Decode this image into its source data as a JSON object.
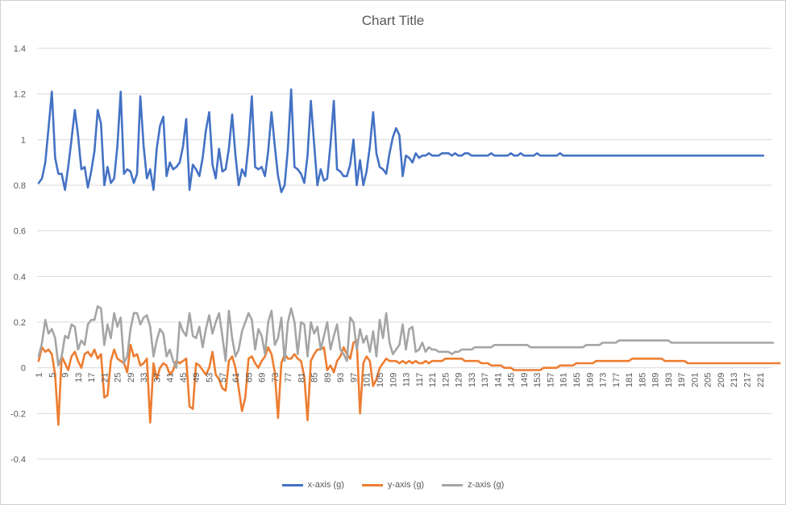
{
  "chart_data": {
    "type": "line",
    "title": "Chart Title",
    "xlabel": "",
    "ylabel": "",
    "ylim": [
      -0.4,
      1.4
    ],
    "y_ticks": [
      -0.4,
      -0.2,
      0,
      0.2,
      0.4,
      0.6,
      0.8,
      1,
      1.2,
      1.4
    ],
    "x_range": [
      1,
      224
    ],
    "x_tick_labels": [
      1,
      5,
      9,
      13,
      17,
      21,
      25,
      29,
      33,
      37,
      41,
      45,
      49,
      53,
      57,
      61,
      65,
      69,
      73,
      77,
      81,
      85,
      89,
      93,
      97,
      101,
      105,
      109,
      113,
      117,
      121,
      125,
      129,
      133,
      137,
      141,
      145,
      149,
      153,
      157,
      161,
      165,
      169,
      173,
      177,
      181,
      185,
      189,
      193,
      197,
      201,
      205,
      209,
      213,
      217,
      221
    ],
    "grid": true,
    "legend_position": "bottom",
    "series": [
      {
        "name": "x-axis (g)",
        "color": "#4472C4",
        "values": [
          0.81,
          0.83,
          0.9,
          1.05,
          1.21,
          0.92,
          0.85,
          0.85,
          0.78,
          0.88,
          1.0,
          1.13,
          1.02,
          0.87,
          0.88,
          0.79,
          0.86,
          0.95,
          1.13,
          1.07,
          0.8,
          0.88,
          0.81,
          0.83,
          0.97,
          1.21,
          0.85,
          0.87,
          0.86,
          0.81,
          0.85,
          1.19,
          0.97,
          0.83,
          0.87,
          0.78,
          0.96,
          1.06,
          1.1,
          0.84,
          0.9,
          0.87,
          0.88,
          0.9,
          0.97,
          1.09,
          0.78,
          0.89,
          0.87,
          0.84,
          0.92,
          1.04,
          1.12,
          0.89,
          0.83,
          0.96,
          0.86,
          0.87,
          0.96,
          1.11,
          0.93,
          0.8,
          0.87,
          0.84,
          0.98,
          1.19,
          0.88,
          0.87,
          0.88,
          0.84,
          0.95,
          1.12,
          0.97,
          0.84,
          0.77,
          0.8,
          0.96,
          1.22,
          0.88,
          0.87,
          0.85,
          0.81,
          0.93,
          1.17,
          0.98,
          0.8,
          0.87,
          0.82,
          0.83,
          0.98,
          1.17,
          0.87,
          0.86,
          0.84,
          0.84,
          0.89,
          1.0,
          0.8,
          0.91,
          0.8,
          0.86,
          0.97,
          1.12,
          0.94,
          0.88,
          0.87,
          0.85,
          0.94,
          1.01,
          1.05,
          1.02,
          0.84,
          0.93,
          0.92,
          0.9,
          0.94,
          0.92,
          0.93,
          0.93,
          0.94,
          0.93,
          0.93,
          0.93,
          0.94,
          0.94,
          0.94,
          0.93,
          0.94,
          0.93,
          0.93,
          0.94,
          0.94,
          0.93,
          0.93,
          0.93,
          0.93,
          0.93,
          0.93,
          0.94,
          0.93,
          0.93,
          0.93,
          0.93,
          0.93,
          0.94,
          0.93,
          0.93,
          0.94,
          0.93,
          0.93,
          0.93,
          0.93,
          0.94,
          0.93,
          0.93,
          0.93,
          0.93,
          0.93,
          0.93,
          0.94,
          0.93,
          0.93,
          0.93,
          0.93,
          0.93,
          0.93,
          0.93,
          0.93,
          0.93,
          0.93,
          0.93,
          0.93,
          0.93,
          0.93,
          0.93,
          0.93,
          0.93,
          0.93,
          0.93,
          0.93,
          0.93,
          0.93,
          0.93,
          0.93,
          0.93,
          0.93,
          0.93,
          0.93,
          0.93,
          0.93,
          0.93,
          0.93,
          0.93,
          0.93,
          0.93,
          0.93,
          0.93,
          0.93,
          0.93,
          0.93,
          0.93,
          0.93,
          0.93,
          0.93,
          0.93,
          0.93,
          0.93,
          0.93,
          0.93,
          0.93,
          0.93,
          0.93,
          0.93,
          0.93,
          0.93,
          0.93,
          0.93,
          0.93,
          0.93,
          0.93,
          0.93,
          0.93
        ]
      },
      {
        "name": "y-axis (g)",
        "color": "#ED7D31",
        "values": [
          0.03,
          0.09,
          0.07,
          0.08,
          0.06,
          -0.03,
          -0.25,
          0.05,
          0.02,
          -0.01,
          0.05,
          0.07,
          0.03,
          0.0,
          0.06,
          0.07,
          0.05,
          0.08,
          0.04,
          0.06,
          -0.13,
          -0.12,
          0.03,
          0.08,
          0.04,
          0.03,
          0.02,
          -0.02,
          0.1,
          0.05,
          0.06,
          0.01,
          0.02,
          0.04,
          -0.24,
          0.02,
          -0.05,
          0.0,
          0.02,
          0.01,
          -0.03,
          -0.01,
          0.03,
          0.02,
          0.03,
          0.04,
          -0.17,
          -0.18,
          0.02,
          0.01,
          -0.01,
          -0.03,
          0.0,
          0.07,
          -0.03,
          -0.05,
          -0.09,
          -0.1,
          0.03,
          0.05,
          0.0,
          -0.09,
          -0.19,
          -0.13,
          0.04,
          0.05,
          0.02,
          0.0,
          0.03,
          0.05,
          0.09,
          0.06,
          -0.02,
          -0.22,
          0.02,
          0.06,
          0.04,
          0.04,
          0.06,
          0.04,
          0.03,
          -0.04,
          -0.23,
          0.03,
          0.06,
          0.08,
          0.08,
          0.09,
          -0.01,
          0.01,
          -0.02,
          0.03,
          0.05,
          0.09,
          0.06,
          0.04,
          0.11,
          0.12,
          -0.2,
          0.02,
          0.05,
          0.03,
          -0.08,
          -0.05,
          0.0,
          0.02,
          0.04,
          0.03,
          0.03,
          0.03,
          0.02,
          0.03,
          0.02,
          0.03,
          0.02,
          0.03,
          0.02,
          0.02,
          0.03,
          0.02,
          0.03,
          0.03,
          0.03,
          0.03,
          0.04,
          0.04,
          0.04,
          0.04,
          0.04,
          0.04,
          0.03,
          0.03,
          0.03,
          0.03,
          0.03,
          0.02,
          0.02,
          0.02,
          0.01,
          0.01,
          0.01,
          0.01,
          0.0,
          0.0,
          0.0,
          -0.01,
          -0.01,
          -0.01,
          -0.01,
          -0.01,
          -0.01,
          -0.01,
          -0.01,
          -0.01,
          0.0,
          0.0,
          0.0,
          0.0,
          0.0,
          0.01,
          0.01,
          0.01,
          0.01,
          0.01,
          0.02,
          0.02,
          0.02,
          0.02,
          0.02,
          0.02,
          0.03,
          0.03,
          0.03,
          0.03,
          0.03,
          0.03,
          0.03,
          0.03,
          0.03,
          0.03,
          0.03,
          0.04,
          0.04,
          0.04,
          0.04,
          0.04,
          0.04,
          0.04,
          0.04,
          0.04,
          0.04,
          0.03,
          0.03,
          0.03,
          0.03,
          0.03,
          0.03,
          0.03,
          0.02,
          0.02,
          0.02,
          0.02,
          0.02,
          0.02,
          0.02,
          0.02,
          0.02,
          0.02,
          0.02,
          0.02,
          0.02,
          0.02,
          0.02,
          0.02,
          0.02,
          0.02,
          0.02,
          0.02,
          0.02,
          0.02,
          0.02,
          0.02,
          0.02,
          0.02,
          0.02,
          0.02,
          0.02
        ]
      },
      {
        "name": "z-axis (g)",
        "color": "#A5A5A5",
        "values": [
          0.05,
          0.11,
          0.21,
          0.15,
          0.17,
          0.13,
          0.01,
          0.05,
          0.14,
          0.13,
          0.19,
          0.18,
          0.08,
          0.12,
          0.1,
          0.19,
          0.21,
          0.21,
          0.27,
          0.26,
          0.1,
          0.19,
          0.13,
          0.24,
          0.18,
          0.22,
          0.02,
          0.05,
          0.17,
          0.24,
          0.24,
          0.19,
          0.22,
          0.23,
          0.18,
          0.05,
          0.12,
          0.17,
          0.15,
          0.05,
          0.08,
          0.03,
          0.0,
          0.2,
          0.16,
          0.14,
          0.24,
          0.14,
          0.13,
          0.18,
          0.09,
          0.17,
          0.23,
          0.15,
          0.2,
          0.24,
          0.14,
          0.03,
          0.25,
          0.13,
          0.05,
          0.08,
          0.16,
          0.2,
          0.24,
          0.21,
          0.08,
          0.17,
          0.14,
          0.06,
          0.2,
          0.25,
          0.1,
          0.13,
          0.22,
          0.03,
          0.2,
          0.26,
          0.2,
          0.06,
          0.2,
          0.19,
          0.05,
          0.2,
          0.15,
          0.18,
          0.08,
          0.14,
          0.2,
          0.08,
          0.14,
          0.19,
          0.08,
          0.06,
          0.03,
          0.22,
          0.2,
          0.08,
          0.17,
          0.11,
          0.14,
          0.07,
          0.16,
          0.05,
          0.21,
          0.13,
          0.24,
          0.11,
          0.06,
          0.08,
          0.1,
          0.19,
          0.08,
          0.17,
          0.18,
          0.07,
          0.08,
          0.11,
          0.07,
          0.09,
          0.08,
          0.08,
          0.07,
          0.07,
          0.07,
          0.07,
          0.06,
          0.07,
          0.07,
          0.08,
          0.08,
          0.08,
          0.08,
          0.09,
          0.09,
          0.09,
          0.09,
          0.09,
          0.09,
          0.1,
          0.1,
          0.1,
          0.1,
          0.1,
          0.1,
          0.1,
          0.1,
          0.1,
          0.1,
          0.1,
          0.09,
          0.09,
          0.09,
          0.09,
          0.09,
          0.09,
          0.09,
          0.09,
          0.09,
          0.09,
          0.09,
          0.09,
          0.09,
          0.09,
          0.09,
          0.09,
          0.09,
          0.1,
          0.1,
          0.1,
          0.1,
          0.1,
          0.11,
          0.11,
          0.11,
          0.11,
          0.11,
          0.12,
          0.12,
          0.12,
          0.12,
          0.12,
          0.12,
          0.12,
          0.12,
          0.12,
          0.12,
          0.12,
          0.12,
          0.12,
          0.12,
          0.12,
          0.12,
          0.11,
          0.11,
          0.11,
          0.11,
          0.11,
          0.11,
          0.11,
          0.11,
          0.11,
          0.11,
          0.11,
          0.11,
          0.11,
          0.11,
          0.11,
          0.11,
          0.11,
          0.11,
          0.11,
          0.11,
          0.11,
          0.11,
          0.11,
          0.11,
          0.11,
          0.11,
          0.11,
          0.11,
          0.11,
          0.11,
          0.11,
          0.11
        ]
      }
    ]
  }
}
